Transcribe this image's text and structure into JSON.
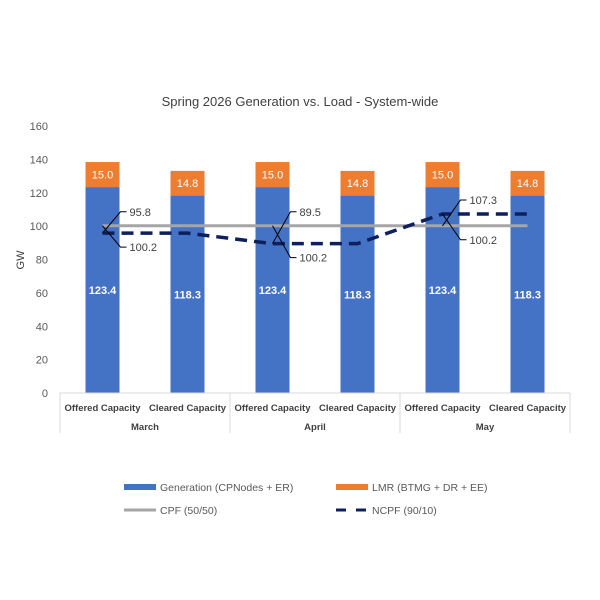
{
  "chart_data": {
    "type": "bar",
    "title": "Spring 2026 Generation vs. Load - System-wide",
    "ylabel": "GW",
    "xlabel": "",
    "ylim": [
      0,
      160
    ],
    "yticks": [
      0,
      20,
      40,
      60,
      80,
      100,
      120,
      140,
      160
    ],
    "categories": [
      "Offered Capacity",
      "Cleared Capacity",
      "Offered Capacity",
      "Cleared Capacity",
      "Offered Capacity",
      "Cleared Capacity"
    ],
    "groups": [
      "March",
      "April",
      "May"
    ],
    "stacked": true,
    "series": [
      {
        "name": "Generation (CPNodes + ER)",
        "kind": "bar",
        "color": "#4472C4",
        "values": [
          123.4,
          118.3,
          123.4,
          118.3,
          123.4,
          118.3
        ]
      },
      {
        "name": "LMR (BTMG + DR + EE)",
        "kind": "bar",
        "color": "#ED7D31",
        "values": [
          15.0,
          14.8,
          15.0,
          14.8,
          15.0,
          14.8
        ]
      },
      {
        "name": "CPF (50/50)",
        "kind": "line",
        "color": "#A5A5A5",
        "values": [
          100.2,
          100.2,
          100.2,
          100.2,
          100.2,
          100.2
        ]
      },
      {
        "name": "NCPF (90/10)",
        "kind": "dashed-line",
        "color": "#0D1F5C",
        "values": [
          95.8,
          95.8,
          89.5,
          89.5,
          107.3,
          107.3
        ]
      }
    ],
    "annotations": [
      "95.8",
      "100.2",
      "89.5",
      "100.2",
      "107.3",
      "100.2"
    ],
    "grid": false,
    "legend_position": "bottom"
  }
}
